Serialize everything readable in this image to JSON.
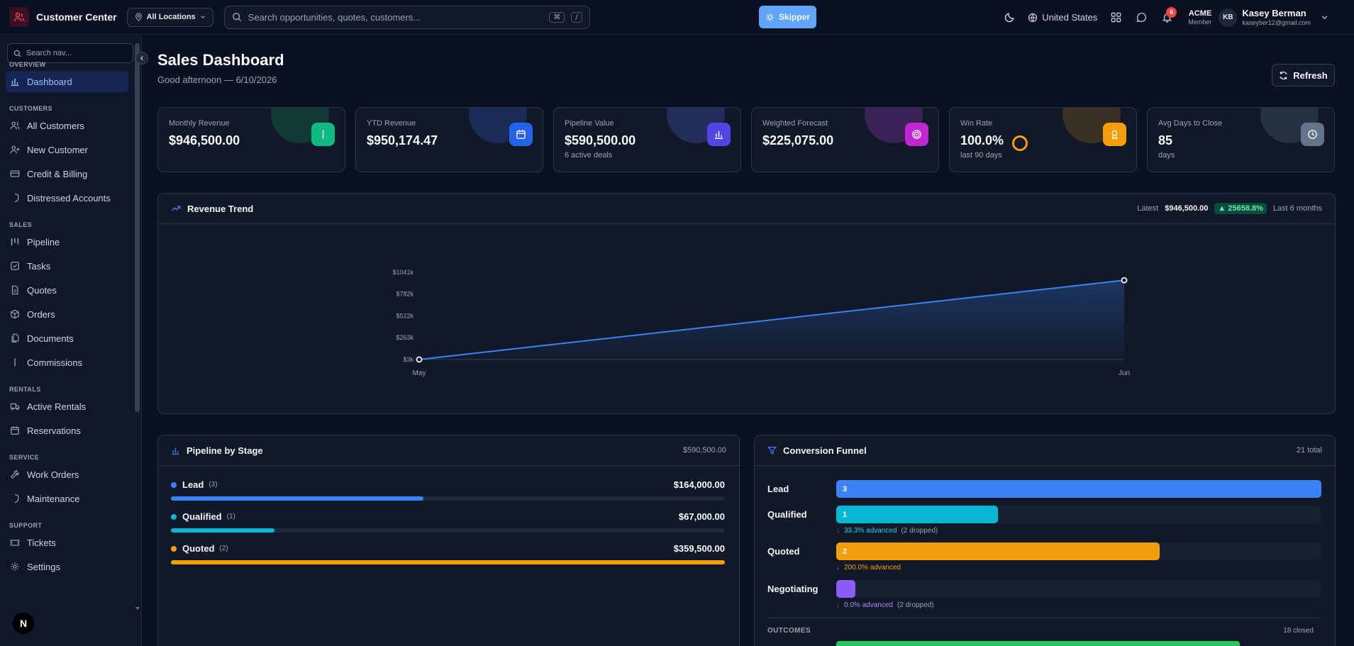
{
  "app": {
    "title": "Customer Center"
  },
  "header": {
    "location_label": "All Locations",
    "search_placeholder": "Search opportunities, quotes, customers...",
    "kbd_cmd": "⌘",
    "kbd_slash": "/",
    "skipper_label": "Skipper",
    "country": "United States",
    "notifications_count": "6",
    "org_name": "ACME",
    "org_role": "Member",
    "user_initials": "KB",
    "user_name": "Kasey Berman",
    "user_email": "kaseyber12@gmail.com"
  },
  "sidebar": {
    "search_placeholder": "Search nav...",
    "sections": [
      {
        "title": "OVERVIEW",
        "items": [
          {
            "label": "Dashboard",
            "icon": "bar-chart-icon",
            "active": true
          }
        ]
      },
      {
        "title": "CUSTOMERS",
        "items": [
          {
            "label": "All Customers",
            "icon": "users-icon"
          },
          {
            "label": "New Customer",
            "icon": "user-plus-icon"
          },
          {
            "label": "Credit & Billing",
            "icon": "credit-card-icon"
          },
          {
            "label": "Distressed Accounts",
            "icon": "shield-icon"
          }
        ]
      },
      {
        "title": "SALES",
        "items": [
          {
            "label": "Pipeline",
            "icon": "kanban-icon"
          },
          {
            "label": "Tasks",
            "icon": "checkbox-icon"
          },
          {
            "label": "Quotes",
            "icon": "file-text-icon"
          },
          {
            "label": "Orders",
            "icon": "package-icon"
          },
          {
            "label": "Documents",
            "icon": "files-icon"
          },
          {
            "label": "Commissions",
            "icon": "dollar-icon"
          }
        ]
      },
      {
        "title": "RENTALS",
        "items": [
          {
            "label": "Active Rentals",
            "icon": "truck-icon"
          },
          {
            "label": "Reservations",
            "icon": "calendar-icon"
          }
        ]
      },
      {
        "title": "SERVICE",
        "items": [
          {
            "label": "Work Orders",
            "icon": "wrench-icon"
          },
          {
            "label": "Maintenance",
            "icon": "shield-icon"
          }
        ]
      },
      {
        "title": "SUPPORT",
        "items": [
          {
            "label": "Tickets",
            "icon": "ticket-icon"
          },
          {
            "label": "Settings",
            "icon": "gear-icon"
          }
        ]
      }
    ]
  },
  "page": {
    "title": "Sales Dashboard",
    "subtitle": "Good afternoon — 6/10/2026",
    "refresh_label": "Refresh"
  },
  "kpis": [
    {
      "label": "Monthly Revenue",
      "value": "$946,500.00",
      "sub": "",
      "icon": "dollar-icon",
      "color": "#10b981",
      "glow": "#0f3b34"
    },
    {
      "label": "YTD Revenue",
      "value": "$950,174.47",
      "sub": "",
      "icon": "calendar-icon",
      "color": "#2563eb",
      "glow": "#1a2c55"
    },
    {
      "label": "Pipeline Value",
      "value": "$590,500.00",
      "sub": "6 active deals",
      "icon": "bar-chart-icon",
      "color": "#4f46e5",
      "glow": "#232d5a"
    },
    {
      "label": "Weighted Forecast",
      "value": "$225,075.00",
      "sub": "",
      "icon": "target-icon",
      "color": "#c026d3",
      "glow": "#3a2156"
    },
    {
      "label": "Win Rate",
      "value": "100.0%",
      "sub": "last 90 days",
      "icon": "award-icon",
      "color": "#f59e0b",
      "glow": "#3a3024"
    },
    {
      "label": "Avg Days to Close",
      "value": "85",
      "sub": "days",
      "icon": "clock-icon",
      "color": "#64748b",
      "glow": "#263142"
    }
  ],
  "revenue_trend": {
    "title": "Revenue Trend",
    "latest_label": "Latest",
    "latest_value": "$946,500.00",
    "change": "▲ 25658.8%",
    "period": "Last 6 months"
  },
  "chart_data": {
    "type": "area",
    "x": [
      "May",
      "Jun"
    ],
    "series": [
      {
        "values": [
          3000,
          946500
        ]
      }
    ],
    "y_ticks": [
      "$3k",
      "$263k",
      "$522k",
      "$782k",
      "$1041k"
    ],
    "y_tick_values": [
      3000,
      263000,
      522000,
      782000,
      1041000
    ],
    "ylim": [
      3000,
      1041000
    ],
    "color": "#3b82f6"
  },
  "pipeline": {
    "title": "Pipeline by Stage",
    "total": "$590,500.00",
    "stages": [
      {
        "name": "Lead",
        "count": "(3)",
        "value": "$164,000.00",
        "fraction": 0.456,
        "color": "#3b82f6"
      },
      {
        "name": "Qualified",
        "count": "(1)",
        "value": "$67,000.00",
        "fraction": 0.187,
        "color": "#06b6d4"
      },
      {
        "name": "Quoted",
        "count": "(2)",
        "value": "$359,500.00",
        "fraction": 1.0,
        "color": "#f59e0b"
      }
    ]
  },
  "funnel": {
    "title": "Conversion Funnel",
    "total": "21 total",
    "stages": [
      {
        "name": "Lead",
        "count": "3",
        "fraction": 1.0,
        "color": "#3b82f6",
        "advanced": "",
        "dropped": ""
      },
      {
        "name": "Qualified",
        "count": "1",
        "fraction": 0.333,
        "color": "#06b6d4",
        "advanced": "33.3% advanced",
        "dropped": "(2 dropped)",
        "adv_color": "#22d3ee"
      },
      {
        "name": "Quoted",
        "count": "2",
        "fraction": 0.667,
        "color": "#f59e0b",
        "advanced": "200.0% advanced",
        "dropped": "",
        "adv_color": "#f59e0b"
      },
      {
        "name": "Negotiating",
        "count": "",
        "fraction": 0.04,
        "color": "#8b5cf6",
        "advanced": "0.0% advanced",
        "dropped": "(2 dropped)",
        "adv_color": "#a78bfa"
      }
    ],
    "outcomes_label": "OUTCOMES",
    "outcomes_total": "18 closed"
  }
}
